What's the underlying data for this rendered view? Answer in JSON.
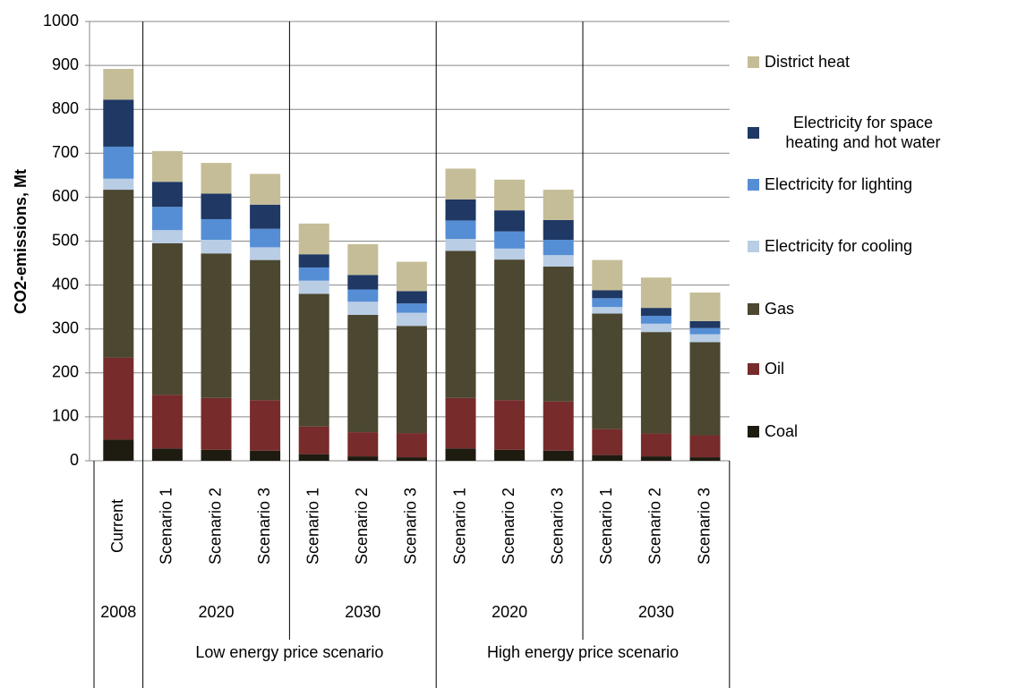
{
  "chart_data": {
    "type": "stacked-bar",
    "ylabel": "CO2-emissions, Mt",
    "ylim": [
      0,
      1000
    ],
    "yticks": [
      0,
      100,
      200,
      300,
      400,
      500,
      600,
      700,
      800,
      900,
      1000
    ],
    "grid": true,
    "groups": [
      {
        "label": null,
        "subgroups": [
          {
            "label": "2008",
            "categories": [
              "Current"
            ]
          }
        ]
      },
      {
        "label": "Low energy price scenario",
        "subgroups": [
          {
            "label": "2020",
            "categories": [
              "Scenario 1",
              "Scenario 2",
              "Scenario 3"
            ]
          },
          {
            "label": "2030",
            "categories": [
              "Scenario 1",
              "Scenario 2",
              "Scenario 3"
            ]
          }
        ]
      },
      {
        "label": "High energy price scenario",
        "subgroups": [
          {
            "label": "2020",
            "categories": [
              "Scenario 1",
              "Scenario 2",
              "Scenario 3"
            ]
          },
          {
            "label": "2030",
            "categories": [
              "Scenario 1",
              "Scenario 2",
              "Scenario 3"
            ]
          }
        ]
      }
    ],
    "legend": "right",
    "series": [
      {
        "name": "Coal",
        "color": "#1e1b10",
        "values": [
          48,
          28,
          25,
          23,
          15,
          10,
          8,
          28,
          25,
          23,
          13,
          10,
          8
        ]
      },
      {
        "name": "Oil",
        "color": "#772b2b",
        "values": [
          187,
          122,
          118,
          115,
          63,
          55,
          55,
          115,
          113,
          112,
          59,
          52,
          50
        ]
      },
      {
        "name": "Gas",
        "color": "#4b4730",
        "values": [
          382,
          345,
          329,
          319,
          302,
          267,
          244,
          335,
          320,
          307,
          263,
          231,
          212
        ]
      },
      {
        "name": "Electricity for cooling",
        "color": "#b9cde5",
        "values": [
          25,
          30,
          31,
          29,
          30,
          30,
          30,
          27,
          25,
          26,
          15,
          19,
          18
        ]
      },
      {
        "name": "Electricity for lighting",
        "color": "#558ed5",
        "values": [
          73,
          53,
          47,
          42,
          30,
          28,
          21,
          42,
          39,
          35,
          20,
          18,
          14
        ]
      },
      {
        "name": "Electricity for space heating and hot water",
        "color": "#1f3864",
        "values": [
          107,
          57,
          58,
          55,
          30,
          33,
          28,
          48,
          48,
          45,
          18,
          18,
          16
        ]
      },
      {
        "name": "District heat",
        "color": "#c4bd97",
        "values": [
          70,
          70,
          70,
          70,
          70,
          70,
          67,
          70,
          70,
          69,
          69,
          69,
          65
        ]
      }
    ]
  }
}
